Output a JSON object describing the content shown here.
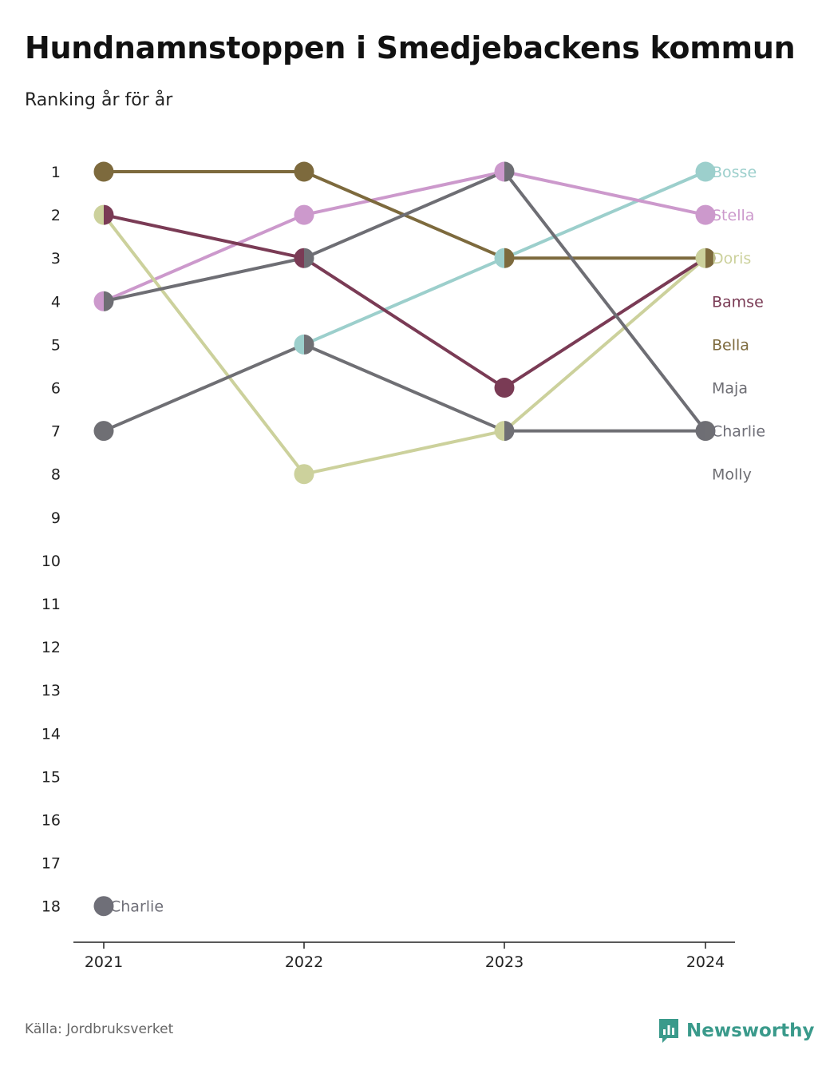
{
  "header": {
    "title": "Hundnamnstoppen i Smedjebackens kommun",
    "subtitle": "Ranking år för år"
  },
  "footer": {
    "source": "Källa: Jordbruksverket",
    "brand": "Newsworthy",
    "brand_color": "#3a9a8b"
  },
  "chart_data": {
    "type": "line",
    "title": "Hundnamnstoppen i Smedjebackens kommun",
    "subtitle": "Ranking år för år",
    "xlabel": "",
    "ylabel": "",
    "x": [
      "2021",
      "2022",
      "2023",
      "2024"
    ],
    "y_ticks": [
      "1",
      "2",
      "3",
      "4",
      "5",
      "6",
      "7",
      "8",
      "9",
      "10",
      "11",
      "12",
      "13",
      "14",
      "15",
      "16",
      "17",
      "18"
    ],
    "ylim": [
      1,
      18
    ],
    "y_reversed": true,
    "grid": false,
    "series": [
      {
        "name": "Bosse",
        "color": "#9ccfcc",
        "values": [
          null,
          5,
          3,
          1
        ]
      },
      {
        "name": "Stella",
        "color": "#cc99cc",
        "values": [
          4,
          2,
          1,
          2
        ]
      },
      {
        "name": "Doris",
        "color": "#ccd19c",
        "values": [
          2,
          8,
          7,
          3
        ]
      },
      {
        "name": "Bamse",
        "color": "#7a3b55",
        "values": [
          2,
          3,
          6,
          3
        ]
      },
      {
        "name": "Bella",
        "color": "#7d6a3d",
        "values": [
          1,
          1,
          3,
          3
        ]
      },
      {
        "name": "Maja",
        "color": "#6e6e74",
        "values": [
          4,
          3,
          1,
          7
        ]
      },
      {
        "name": "Charlie",
        "color": "#6f6f78",
        "values": [
          18,
          null,
          null,
          7
        ],
        "label_2021": "Charlie"
      },
      {
        "name": "Molly",
        "color": "#6f6f74",
        "values": [
          7,
          5,
          7,
          7
        ]
      }
    ]
  }
}
